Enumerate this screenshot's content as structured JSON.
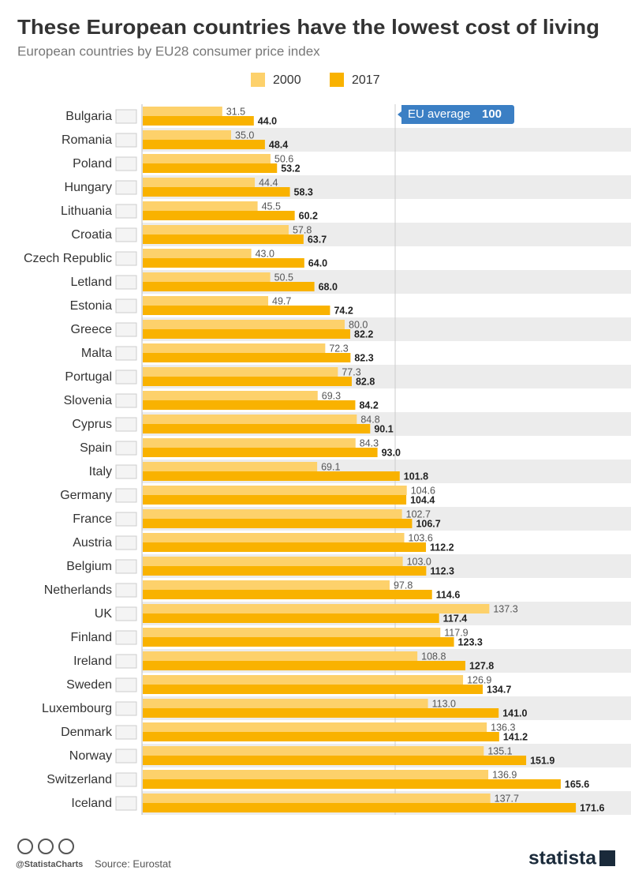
{
  "chart_data": {
    "type": "grouped-hbar",
    "title": "These European countries have the lowest cost of living",
    "subtitle": "European countries by EU28 consumer price index",
    "categories": [
      "Bulgaria",
      "Romania",
      "Poland",
      "Hungary",
      "Lithuania",
      "Croatia",
      "Czech Republic",
      "Letland",
      "Estonia",
      "Greece",
      "Malta",
      "Portugal",
      "Slovenia",
      "Cyprus",
      "Spain",
      "Italy",
      "Germany",
      "France",
      "Austria",
      "Belgium",
      "Netherlands",
      "UK",
      "Finland",
      "Ireland",
      "Sweden",
      "Luxembourg",
      "Denmark",
      "Norway",
      "Switzerland",
      "Iceland"
    ],
    "series": [
      {
        "name": "2000",
        "color": "#fdd16b",
        "values": [
          31.5,
          35.0,
          50.6,
          44.4,
          45.5,
          57.8,
          43.0,
          50.5,
          49.7,
          80.0,
          72.3,
          77.3,
          69.3,
          84.8,
          84.3,
          69.1,
          104.6,
          102.7,
          103.6,
          103.0,
          97.8,
          137.3,
          117.9,
          108.8,
          126.9,
          113.0,
          136.3,
          135.1,
          136.9,
          137.7
        ],
        "value_labels": [
          "31.5",
          "35.0",
          "50.6",
          "44.4",
          "45.5",
          "57.8",
          "43.0",
          "50.5",
          "49.7",
          "80.0",
          "72.3",
          "77.3",
          "69.3",
          "84.8",
          "84.3",
          "69.1",
          "104.6",
          "102.7",
          "103.6",
          "103.0",
          "97.8",
          "137.3",
          "117.9",
          "108.8",
          "126.9",
          "113.0",
          "136.3",
          "135.1",
          "136.9",
          "137.7"
        ]
      },
      {
        "name": "2017",
        "color": "#f9b200",
        "values": [
          44.0,
          48.4,
          53.2,
          58.3,
          60.2,
          63.7,
          64.0,
          68.0,
          74.2,
          82.2,
          82.3,
          82.8,
          84.2,
          90.1,
          93.0,
          101.8,
          104.4,
          106.7,
          112.2,
          112.3,
          114.6,
          117.4,
          123.3,
          127.8,
          134.7,
          141.0,
          141.2,
          151.9,
          165.6,
          171.6
        ],
        "value_labels": [
          "44.0",
          "48.4",
          "53.2",
          "58.3",
          "60.2",
          "63.7",
          "64.0",
          "68.0",
          "74.2",
          "82.2",
          "82.3",
          "82.8",
          "84.2",
          "90.1",
          "93.0",
          "101.8",
          "104.4",
          "106.7",
          "112.2",
          "112.3",
          "114.6",
          "117.4",
          "123.3",
          "127.8",
          "134.7",
          "141.0",
          "141.2",
          "151.9",
          "165.6",
          "171.6"
        ]
      }
    ],
    "xlim": [
      0,
      180
    ],
    "reference": {
      "label": "EU average",
      "value": 100,
      "color": "#3b7fc4"
    }
  },
  "footer": {
    "handle": "@StatistaCharts",
    "source": "Source: Eurostat",
    "brand": "statista"
  }
}
